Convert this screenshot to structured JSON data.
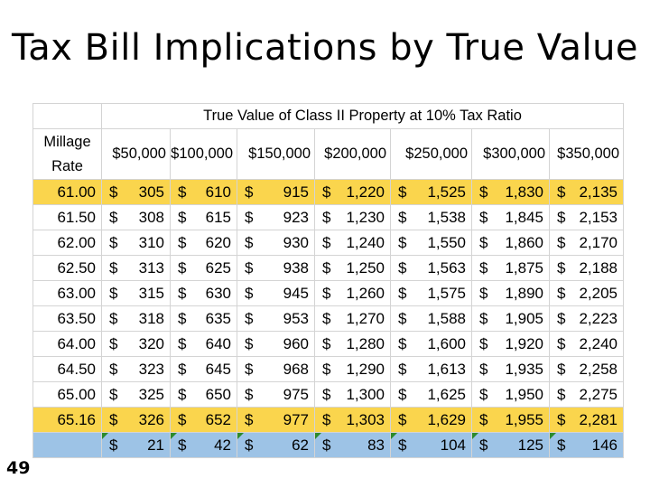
{
  "slide": {
    "title": "Tax Bill Implications by True Value",
    "page_number": "49"
  },
  "table": {
    "header_title": "True Value of Class II Property at 10% Tax Ratio",
    "rate_header_line1": "Millage",
    "rate_header_line2": "Rate",
    "columns": [
      "$50,000",
      "$100,000",
      "$150,000",
      "$200,000",
      "$250,000",
      "$300,000",
      "$350,000"
    ],
    "currency_symbol": "$",
    "rows": [
      {
        "rate": "61.00",
        "values": [
          "305",
          "610",
          "915",
          "1,220",
          "1,525",
          "1,830",
          "2,135"
        ]
      },
      {
        "rate": "61.50",
        "values": [
          "308",
          "615",
          "923",
          "1,230",
          "1,538",
          "1,845",
          "2,153"
        ]
      },
      {
        "rate": "62.00",
        "values": [
          "310",
          "620",
          "930",
          "1,240",
          "1,550",
          "1,860",
          "2,170"
        ]
      },
      {
        "rate": "62.50",
        "values": [
          "313",
          "625",
          "938",
          "1,250",
          "1,563",
          "1,875",
          "2,188"
        ]
      },
      {
        "rate": "63.00",
        "values": [
          "315",
          "630",
          "945",
          "1,260",
          "1,575",
          "1,890",
          "2,205"
        ]
      },
      {
        "rate": "63.50",
        "values": [
          "318",
          "635",
          "953",
          "1,270",
          "1,588",
          "1,905",
          "2,223"
        ]
      },
      {
        "rate": "64.00",
        "values": [
          "320",
          "640",
          "960",
          "1,280",
          "1,600",
          "1,920",
          "2,240"
        ]
      },
      {
        "rate": "64.50",
        "values": [
          "323",
          "645",
          "968",
          "1,290",
          "1,613",
          "1,935",
          "2,258"
        ]
      },
      {
        "rate": "65.00",
        "values": [
          "325",
          "650",
          "975",
          "1,300",
          "1,625",
          "1,950",
          "2,275"
        ]
      },
      {
        "rate": "65.16",
        "values": [
          "326",
          "652",
          "977",
          "1,303",
          "1,629",
          "1,955",
          "2,281"
        ]
      }
    ],
    "difference_row": {
      "rate": "",
      "values": [
        "21",
        "42",
        "62",
        "83",
        "104",
        "125",
        "146"
      ]
    },
    "colors": {
      "highlight_row": "#fad54d",
      "difference_row": "#9dc3e6",
      "error_marker": "#2c8a2c"
    }
  }
}
